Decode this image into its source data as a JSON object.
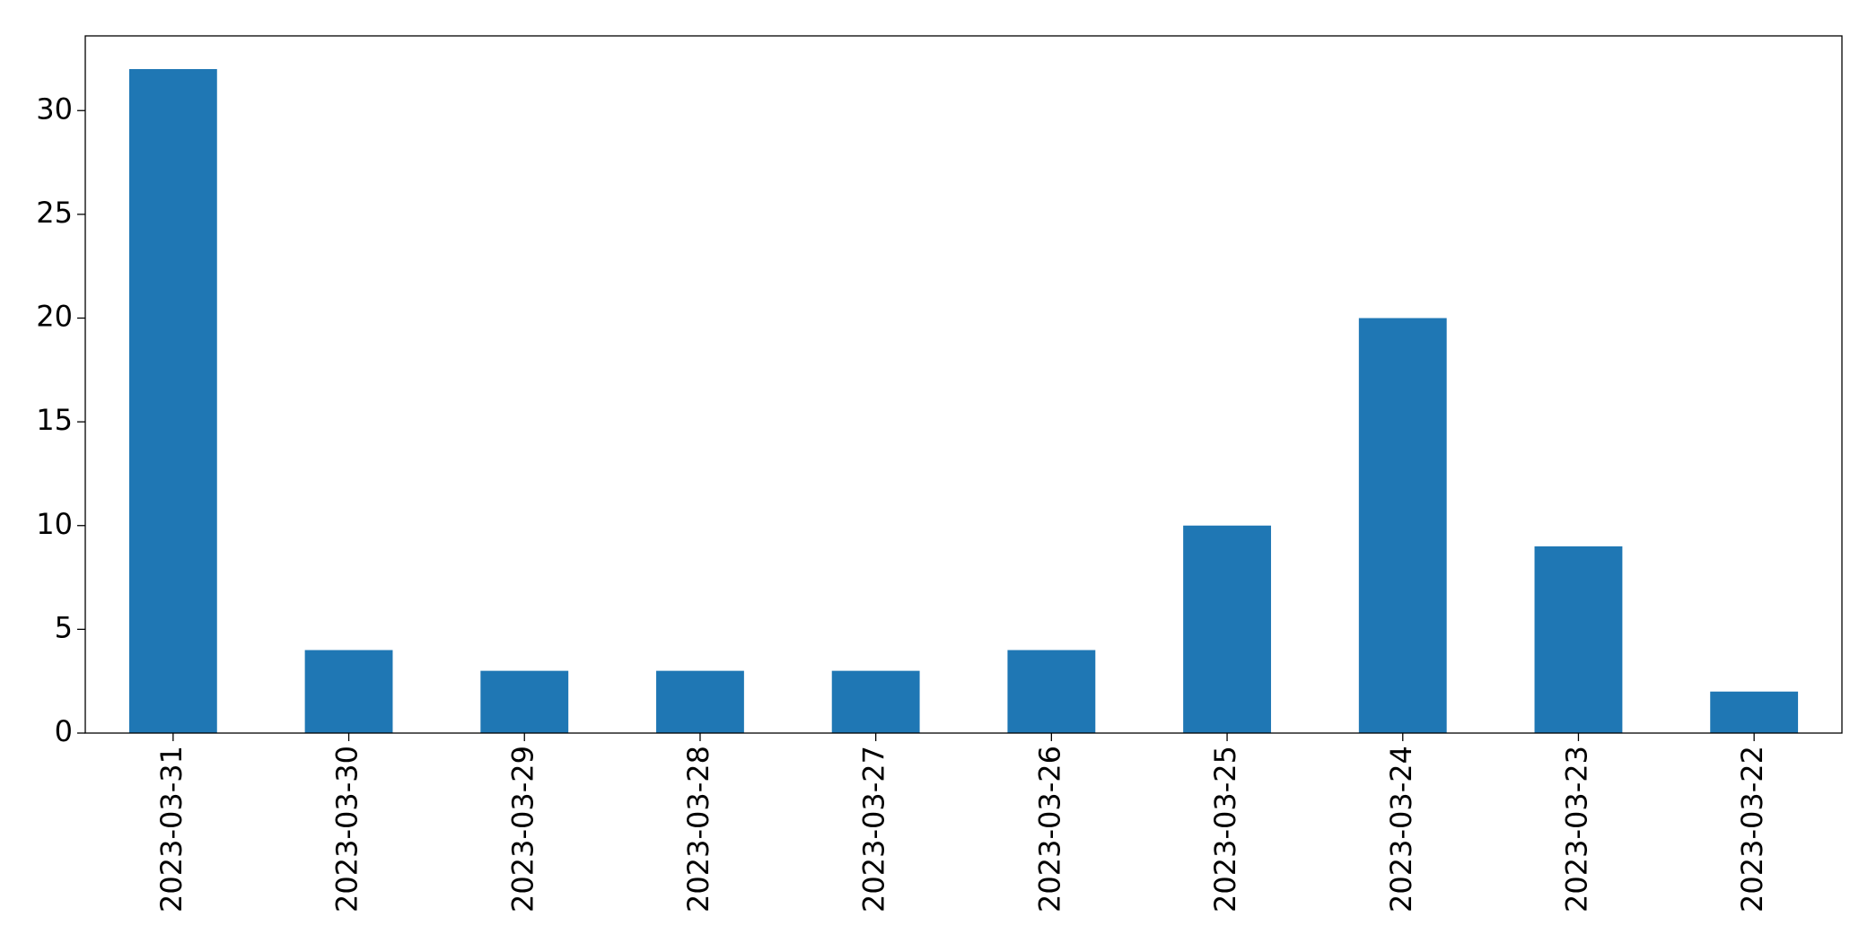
{
  "chart_data": {
    "type": "bar",
    "categories": [
      "2023-03-31",
      "2023-03-30",
      "2023-03-29",
      "2023-03-28",
      "2023-03-27",
      "2023-03-26",
      "2023-03-25",
      "2023-03-24",
      "2023-03-23",
      "2023-03-22"
    ],
    "values": [
      32,
      4,
      3,
      3,
      3,
      4,
      10,
      20,
      9,
      2
    ],
    "color": "#1f77b4",
    "ylim": [
      0,
      33.6
    ],
    "yticks": [
      0,
      5,
      10,
      15,
      20,
      25,
      30
    ],
    "grid": false
  }
}
